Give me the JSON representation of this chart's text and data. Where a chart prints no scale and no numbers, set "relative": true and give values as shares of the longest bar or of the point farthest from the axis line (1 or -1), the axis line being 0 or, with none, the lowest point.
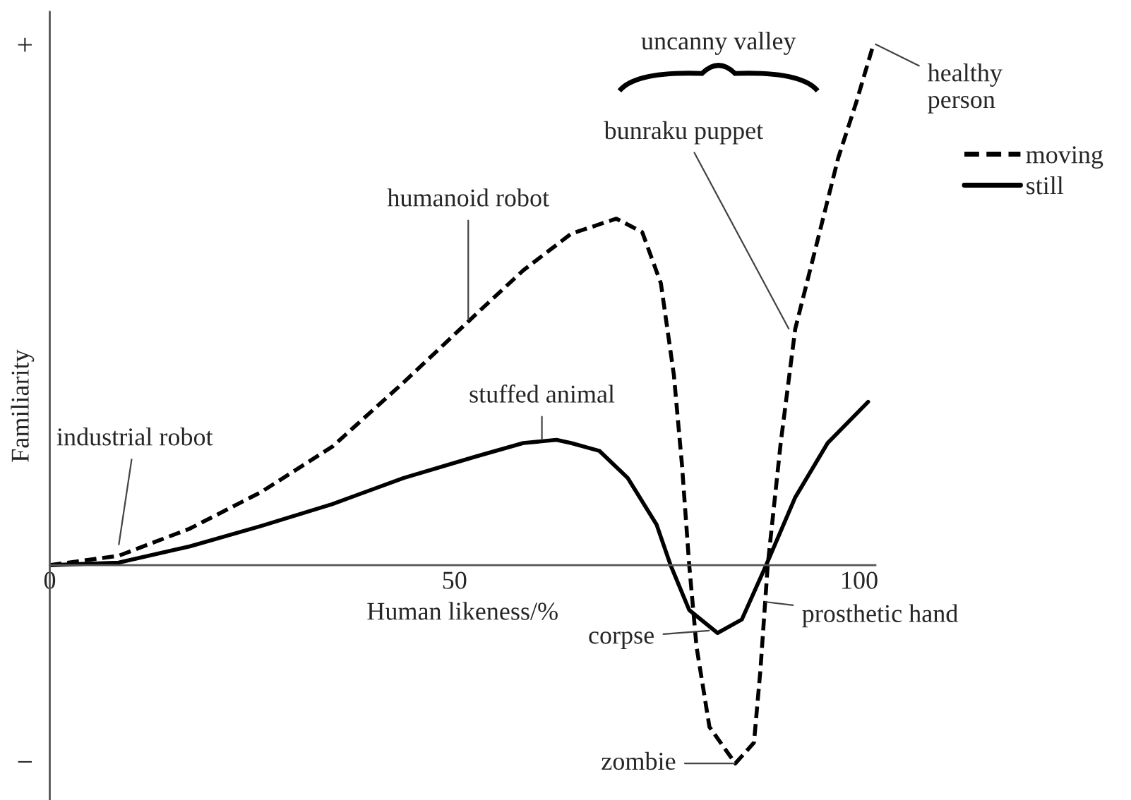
{
  "chart_data": {
    "type": "line",
    "relative": true,
    "xlabel": "Human likeness/%",
    "ylabel": "Familiarity",
    "xlim": [
      0,
      102
    ],
    "xticks": [
      0,
      50,
      100
    ],
    "legend": "top right",
    "grid": false,
    "marker": "none",
    "series": [
      {
        "name": "moving",
        "color": "#000000",
        "line_style": "dashed",
        "x": [
          0,
          8.5,
          17.3,
          26.1,
          34.9,
          43.7,
          52.6,
          58.5,
          64.4,
          70,
          73.2,
          75.5,
          77.1,
          78.1,
          79,
          79.9,
          81.5,
          84.7,
          87,
          87.8,
          88.7,
          90.3,
          92.1,
          94.9,
          97.4,
          99.6,
          101.8
        ],
        "values": [
          0,
          0.018,
          0.07,
          0.14,
          0.227,
          0.35,
          0.48,
          0.565,
          0.635,
          0.664,
          0.638,
          0.54,
          0.365,
          0.193,
          0,
          -0.156,
          -0.31,
          -0.38,
          -0.34,
          -0.2,
          0,
          0.234,
          0.453,
          0.625,
          0.78,
          0.885,
          1
        ]
      },
      {
        "name": "still",
        "color": "#000000",
        "line_style": "solid",
        "x": [
          0,
          8.5,
          17.3,
          26.1,
          34.9,
          43.7,
          52.6,
          58.5,
          62.6,
          64.4,
          67.9,
          71.4,
          74.96,
          76.7,
          79,
          82.5,
          85.5,
          88.5,
          92.1,
          96.1,
          101.1
        ],
        "values": [
          0,
          0.005,
          0.036,
          0.075,
          0.117,
          0.167,
          0.208,
          0.234,
          0.24,
          0.234,
          0.219,
          0.167,
          0.078,
          0,
          -0.086,
          -0.13,
          -0.104,
          0,
          0.13,
          0.234,
          0.313
        ]
      }
    ],
    "annotations": [
      "+",
      "−",
      {
        "text": "industrial robot",
        "x": 8.5,
        "y": 0.036
      },
      {
        "text": "humanoid robot",
        "x": 51.7,
        "y": 0.467
      },
      {
        "text": "stuffed animal",
        "x": 60.8,
        "y": 0.237
      },
      {
        "text": "bunraku puppet",
        "x": 91.4,
        "y": 0.45
      },
      {
        "text": "healthy\nperson",
        "x": 101.8,
        "y": 1
      },
      {
        "text": "corpse",
        "x": 81.7,
        "y": -0.125
      },
      {
        "text": "prosthetic hand",
        "x": 88.2,
        "y": -0.07
      },
      {
        "text": "zombie",
        "x": 84.7,
        "y": -0.38
      },
      "uncanny valley"
    ]
  }
}
